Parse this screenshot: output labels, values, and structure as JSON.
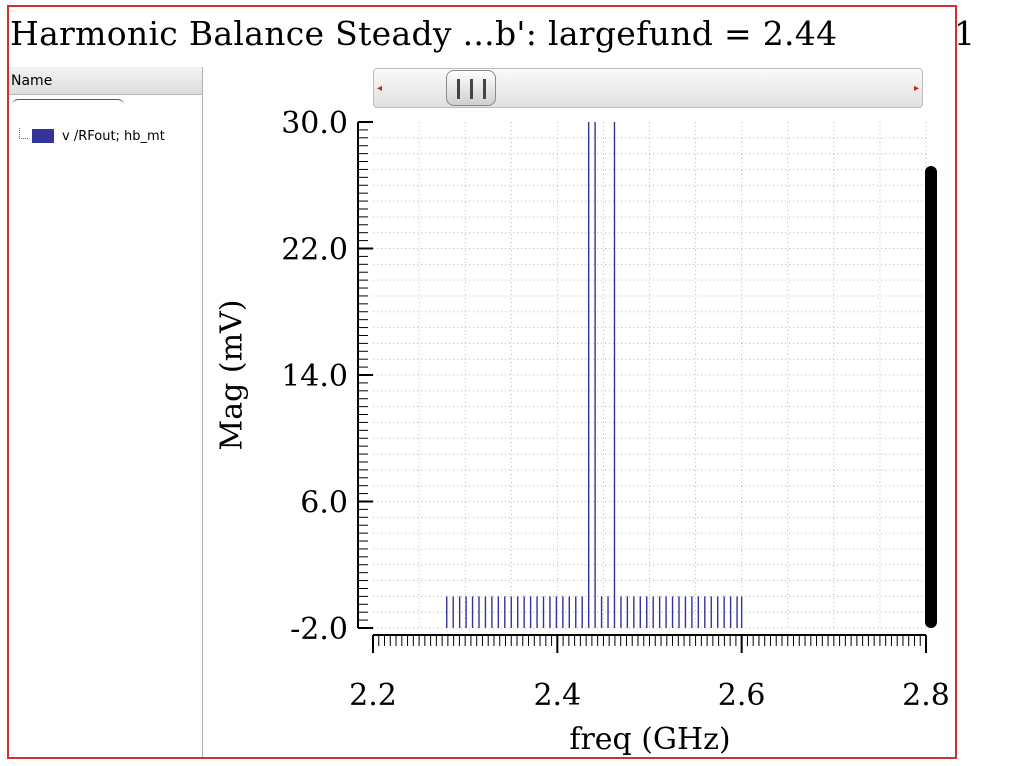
{
  "window": {
    "title": "Harmonic Balance Steady ...b': largefund = 2.44",
    "page_number": "1"
  },
  "legend": {
    "header": "Name",
    "items": [
      {
        "label": "v /RFout; hb_mt",
        "color": "#33339a"
      }
    ]
  },
  "scrollbar": {
    "left_arrow": "◂",
    "right_arrow": "▸"
  },
  "chart_data": {
    "type": "bar",
    "xlabel": "freq (GHz)",
    "ylabel": "Mag (mV)",
    "xlim": [
      2.2,
      2.8
    ],
    "ylim": [
      -2.0,
      30.0
    ],
    "xticks": [
      2.2,
      2.4,
      2.6,
      2.8
    ],
    "xtick_labels": [
      "2.2",
      "2.4",
      "2.6",
      "2.8"
    ],
    "yticks": [
      -2.0,
      6.0,
      14.0,
      22.0,
      30.0
    ],
    "ytick_labels": [
      "-2.0",
      "6.0",
      "14.0",
      "22.0",
      "30.0"
    ],
    "grid": true,
    "series_color": "#33339a",
    "baseline": -2.0,
    "spectral_lines": [
      {
        "x": 2.28,
        "y": 0.0
      },
      {
        "x": 2.287,
        "y": 0.0
      },
      {
        "x": 2.294,
        "y": 0.0
      },
      {
        "x": 2.301,
        "y": 0.0
      },
      {
        "x": 2.308,
        "y": 0.0
      },
      {
        "x": 2.315,
        "y": 0.0
      },
      {
        "x": 2.322,
        "y": 0.0
      },
      {
        "x": 2.329,
        "y": 0.0
      },
      {
        "x": 2.336,
        "y": 0.0
      },
      {
        "x": 2.343,
        "y": 0.0
      },
      {
        "x": 2.35,
        "y": 0.0
      },
      {
        "x": 2.357,
        "y": 0.0
      },
      {
        "x": 2.364,
        "y": 0.0
      },
      {
        "x": 2.371,
        "y": 0.0
      },
      {
        "x": 2.378,
        "y": 0.0
      },
      {
        "x": 2.385,
        "y": 0.0
      },
      {
        "x": 2.392,
        "y": 0.0
      },
      {
        "x": 2.399,
        "y": 0.0
      },
      {
        "x": 2.406,
        "y": 0.0
      },
      {
        "x": 2.413,
        "y": 0.0
      },
      {
        "x": 2.42,
        "y": 0.0
      },
      {
        "x": 2.427,
        "y": 0.0
      },
      {
        "x": 2.434,
        "y": 30.0
      },
      {
        "x": 2.441,
        "y": 30.0
      },
      {
        "x": 2.448,
        "y": 0.0
      },
      {
        "x": 2.455,
        "y": 0.0
      },
      {
        "x": 2.462,
        "y": 30.0
      },
      {
        "x": 2.469,
        "y": 0.0
      },
      {
        "x": 2.476,
        "y": 0.0
      },
      {
        "x": 2.483,
        "y": 0.0
      },
      {
        "x": 2.49,
        "y": 0.0
      },
      {
        "x": 2.497,
        "y": 0.0
      },
      {
        "x": 2.504,
        "y": 0.0
      },
      {
        "x": 2.511,
        "y": 0.0
      },
      {
        "x": 2.518,
        "y": 0.0
      },
      {
        "x": 2.525,
        "y": 0.0
      },
      {
        "x": 2.532,
        "y": 0.0
      },
      {
        "x": 2.539,
        "y": 0.0
      },
      {
        "x": 2.546,
        "y": 0.0
      },
      {
        "x": 2.553,
        "y": 0.0
      },
      {
        "x": 2.56,
        "y": 0.0
      },
      {
        "x": 2.567,
        "y": 0.0
      },
      {
        "x": 2.574,
        "y": 0.0
      },
      {
        "x": 2.581,
        "y": 0.0
      },
      {
        "x": 2.588,
        "y": 0.0
      },
      {
        "x": 2.595,
        "y": 0.0
      },
      {
        "x": 2.6,
        "y": 0.0
      }
    ]
  }
}
